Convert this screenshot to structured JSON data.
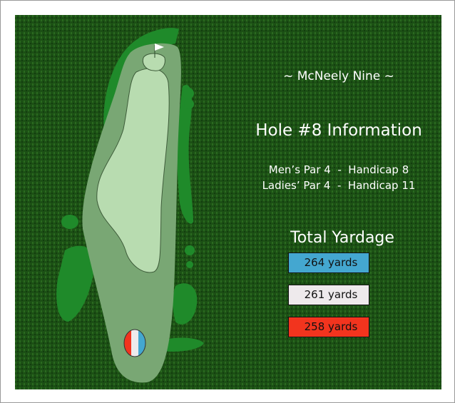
{
  "course_title": "~ McNeely Nine ~",
  "hole_title": "Hole #8 Information",
  "mens_line": "Men’s Par 4  -  Handicap 8",
  "ladies_line": "Ladies’ Par 4  -  Handicap 11",
  "total_yardage_label": "Total Yardage",
  "tees": [
    {
      "yardage": "264 yards",
      "color": "#44a7d0"
    },
    {
      "yardage": "261 yards",
      "color": "#eeeaec"
    },
    {
      "yardage": "258 yards",
      "color": "#f2341e"
    }
  ],
  "icons": [
    "flag-icon",
    "tee-marker-icon"
  ]
}
